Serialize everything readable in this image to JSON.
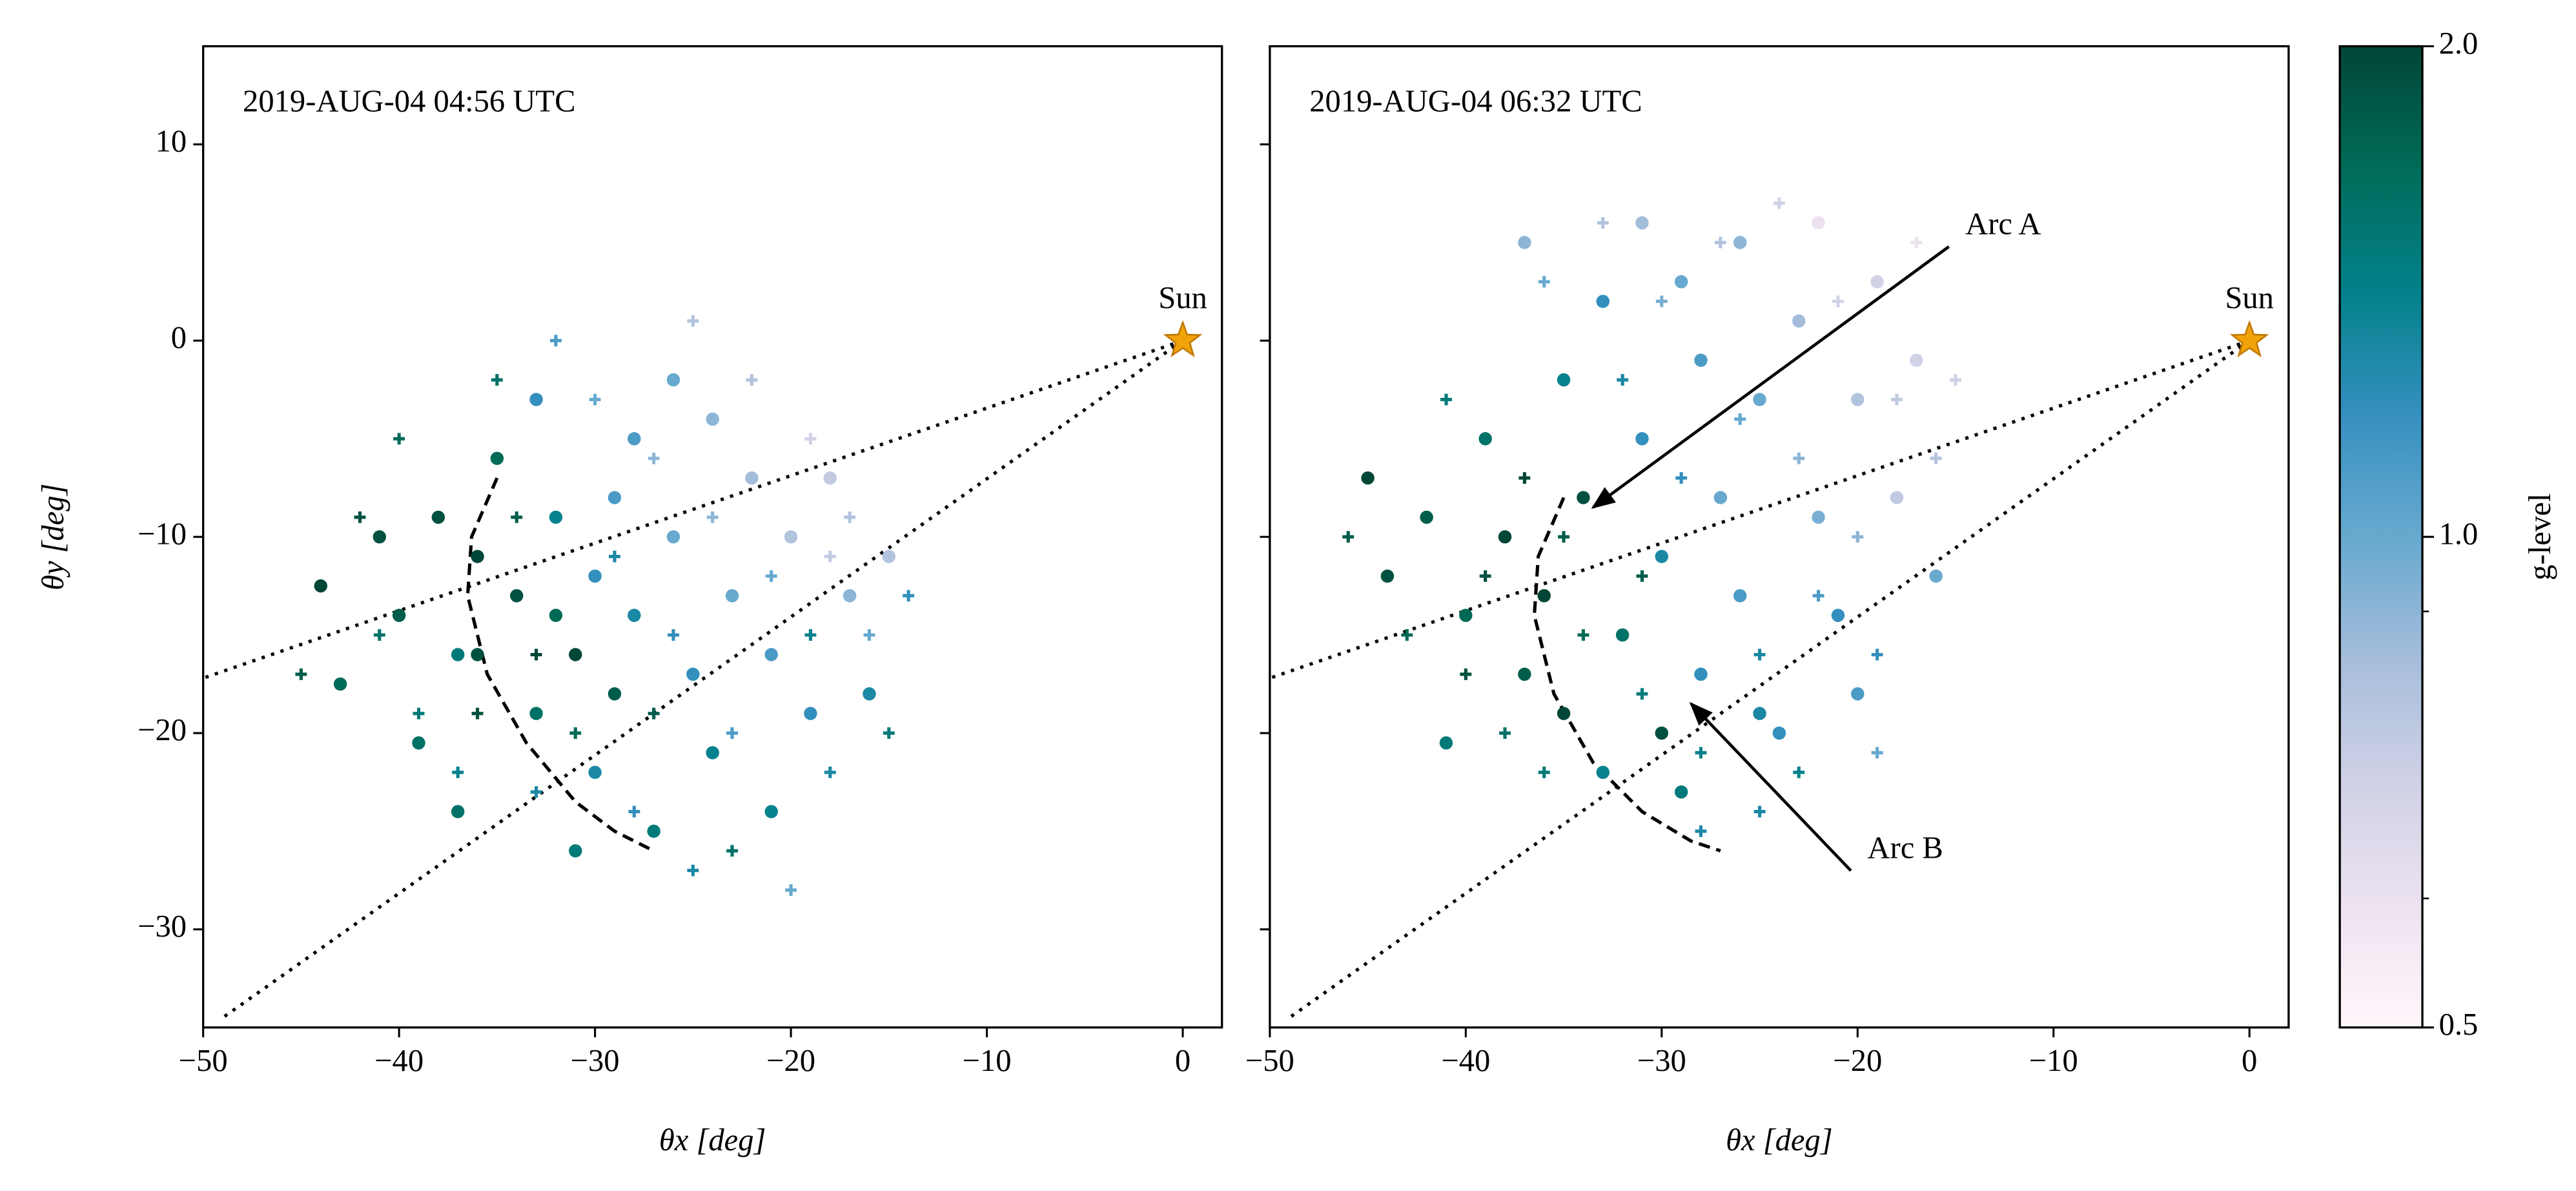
{
  "chart_data": [
    {
      "type": "scatter",
      "title": "2019-AUG-04 04:56 UTC",
      "xlabel": "θx [deg]",
      "ylabel": "θy [deg]",
      "xlim": [
        -50,
        2
      ],
      "ylim": [
        -35,
        15
      ],
      "xticks": [
        {
          "value": -50,
          "label": "−50"
        },
        {
          "value": -40,
          "label": "−40"
        },
        {
          "value": -30,
          "label": "−30"
        },
        {
          "value": -20,
          "label": "−20"
        },
        {
          "value": -10,
          "label": "−10"
        },
        0
      ],
      "yticks": [
        {
          "value": -30,
          "label": "−30"
        },
        {
          "value": -20,
          "label": "−20"
        },
        {
          "value": -10,
          "label": "−10"
        },
        0,
        10
      ],
      "series": [
        {
          "marker": "o",
          "x": [
            -44,
            -43,
            -41,
            -40,
            -39,
            -38,
            -37,
            -36,
            -35,
            -34,
            -33,
            -32,
            -31,
            -30,
            -30,
            -29,
            -28,
            -28,
            -27,
            -26,
            -25,
            -24,
            -24,
            -23,
            -22,
            -21,
            -21,
            -20,
            -19,
            -18,
            -17,
            -16,
            -15,
            -33,
            -31,
            -37,
            -26,
            -36,
            -32,
            -29
          ],
          "y": [
            -12.5,
            -17.5,
            -10,
            -14,
            -20.5,
            -9,
            -16,
            -11,
            -6,
            -13,
            -19,
            -9,
            -16,
            -12,
            -22,
            -18,
            -5,
            -14,
            -25,
            -10,
            -17,
            -4,
            -21,
            -13,
            -7,
            -16,
            -24,
            -10,
            -19,
            -7,
            -13,
            -18,
            -11,
            -3,
            -26,
            -24,
            -2,
            -16,
            -14,
            -8
          ],
          "g": [
            2.0,
            1.7,
            1.9,
            1.8,
            1.6,
            1.9,
            1.5,
            2.0,
            1.7,
            1.9,
            1.6,
            1.4,
            2.0,
            1.2,
            1.3,
            1.8,
            1.1,
            1.3,
            1.5,
            1.0,
            1.2,
            0.9,
            1.4,
            1.0,
            0.85,
            1.1,
            1.4,
            0.8,
            1.2,
            0.75,
            0.9,
            1.3,
            0.8,
            1.2,
            1.5,
            1.6,
            1.0,
            1.9,
            1.7,
            1.1
          ]
        },
        {
          "marker": "+",
          "x": [
            -45,
            -42,
            -40,
            -39,
            -37,
            -35,
            -34,
            -33,
            -32,
            -31,
            -30,
            -29,
            -28,
            -27,
            -26,
            -25,
            -24,
            -23,
            -22,
            -21,
            -20,
            -19,
            -18,
            -17,
            -16,
            -15,
            -19,
            -36,
            -41,
            -33,
            -23,
            -27,
            -25,
            -18,
            -14
          ],
          "y": [
            -17,
            -9,
            -5,
            -19,
            -22,
            -2,
            -9,
            -23,
            0,
            -20,
            -3,
            -11,
            -24,
            -6,
            -15,
            -27,
            -9,
            -20,
            -2,
            -12,
            -28,
            -5,
            -22,
            -9,
            -15,
            -20,
            -15,
            -19,
            -15,
            -16,
            -26,
            -19,
            1,
            -11,
            -13
          ],
          "g": [
            1.8,
            1.9,
            1.7,
            1.5,
            1.4,
            1.6,
            1.8,
            1.3,
            1.1,
            1.7,
            1.0,
            1.3,
            1.2,
            0.9,
            1.2,
            1.3,
            0.9,
            1.1,
            0.8,
            1.0,
            1.0,
            0.7,
            1.3,
            0.8,
            1.0,
            1.5,
            1.4,
            1.9,
            1.6,
            2.0,
            1.6,
            1.8,
            0.8,
            0.75,
            1.2
          ]
        }
      ],
      "lines": [
        {
          "style": "dotted",
          "x": [
            0,
            -50
          ],
          "y": [
            0,
            -17.2
          ]
        },
        {
          "style": "dotted",
          "x": [
            0,
            -49
          ],
          "y": [
            0,
            -34.5
          ]
        },
        {
          "style": "dashed",
          "x": [
            -35,
            -36.3,
            -36.5,
            -35.5,
            -33.5,
            -31,
            -29,
            -27
          ],
          "y": [
            -7,
            -10,
            -13,
            -17,
            -20.5,
            -23.5,
            -25,
            -26
          ]
        }
      ],
      "sun": {
        "label": "Sun",
        "x": 0,
        "y": 0,
        "color": "#f0a30a"
      },
      "annotations": []
    },
    {
      "type": "scatter",
      "title": "2019-AUG-04 06:32 UTC",
      "xlabel": "θx [deg]",
      "xlim": [
        -50,
        2
      ],
      "ylim": [
        -35,
        15
      ],
      "xticks": [
        {
          "value": -50,
          "label": "−50"
        },
        {
          "value": -40,
          "label": "−40"
        },
        {
          "value": -30,
          "label": "−30"
        },
        {
          "value": -20,
          "label": "−20"
        },
        {
          "value": -10,
          "label": "−10"
        },
        0
      ],
      "yticks": [
        -30,
        -20,
        -10,
        0,
        10
      ],
      "series": [
        {
          "marker": "o",
          "x": [
            -45,
            -44,
            -42,
            -41,
            -40,
            -39,
            -38,
            -37,
            -36,
            -35,
            -34,
            -33,
            -32,
            -31,
            -30,
            -30,
            -29,
            -28,
            -28,
            -27,
            -26,
            -26,
            -25,
            -24,
            -23,
            -22,
            -21,
            -20,
            -19,
            -18,
            -17,
            -16,
            -31,
            -33,
            -35,
            -29,
            -25,
            -37,
            -22,
            -20
          ],
          "y": [
            -7,
            -12,
            -9,
            -20.5,
            -14,
            -5,
            -10,
            -17,
            -13,
            -2,
            -8,
            -22,
            -15,
            -5,
            -20,
            -11,
            3,
            -1,
            -17,
            -8,
            5,
            -13,
            -3,
            -20,
            1,
            -9,
            -14,
            -3,
            3,
            -8,
            -1,
            -12,
            6,
            2,
            -19,
            -23,
            -19,
            5,
            6,
            -18
          ],
          "g": [
            2.0,
            1.9,
            1.8,
            1.5,
            1.7,
            1.6,
            2.0,
            1.8,
            2.0,
            1.4,
            1.9,
            1.4,
            1.6,
            1.2,
            1.9,
            1.3,
            1.0,
            1.1,
            1.2,
            1.0,
            0.9,
            1.1,
            1.0,
            1.2,
            0.85,
            0.95,
            1.2,
            0.8,
            0.7,
            0.75,
            0.7,
            1.0,
            0.85,
            1.2,
            2.0,
            1.5,
            1.3,
            0.9,
            0.6,
            1.1
          ]
        },
        {
          "marker": "+",
          "x": [
            -46,
            -43,
            -41,
            -39,
            -38,
            -36,
            -35,
            -34,
            -33,
            -32,
            -31,
            -30,
            -29,
            -28,
            -27,
            -26,
            -25,
            -24,
            -23,
            -22,
            -21,
            -20,
            -19,
            -18,
            -17,
            -16,
            -15,
            -40,
            -37,
            -28,
            -23,
            -31,
            -19,
            -36,
            -25
          ],
          "y": [
            -10,
            -15,
            -3,
            -12,
            -20,
            3,
            -10,
            -15,
            6,
            -2,
            -18,
            2,
            -7,
            -21,
            5,
            -4,
            -16,
            7,
            -6,
            -13,
            2,
            -10,
            -16,
            -3,
            5,
            -6,
            -2,
            -17,
            -7,
            -25,
            -22,
            -12,
            -21,
            -22,
            -24
          ],
          "g": [
            1.8,
            1.7,
            1.5,
            1.9,
            1.6,
            1.0,
            1.8,
            1.7,
            0.8,
            1.3,
            1.5,
            0.95,
            1.2,
            1.4,
            0.8,
            1.0,
            1.3,
            0.7,
            0.9,
            1.1,
            0.7,
            0.9,
            1.2,
            0.75,
            0.6,
            0.8,
            0.7,
            1.9,
            2.0,
            1.3,
            1.4,
            1.8,
            1.0,
            1.5,
            1.3
          ]
        }
      ],
      "lines": [
        {
          "style": "dotted",
          "x": [
            0,
            -50
          ],
          "y": [
            0,
            -17.2
          ]
        },
        {
          "style": "dotted",
          "x": [
            0,
            -49
          ],
          "y": [
            0,
            -34.5
          ]
        },
        {
          "style": "dashed",
          "x": [
            -35,
            -36.3,
            -36.5,
            -35.5,
            -33.5,
            -31,
            -28.5,
            -27
          ],
          "y": [
            -8,
            -11,
            -14,
            -18,
            -21.5,
            -24,
            -25.5,
            -26
          ]
        }
      ],
      "sun": {
        "label": "Sun",
        "x": 0,
        "y": 0,
        "color": "#f0a30a"
      },
      "annotations": [
        {
          "text": "Arc A",
          "x": -14.5,
          "y": 5.8,
          "xy": [
            -33.5,
            -8.5
          ]
        },
        {
          "text": "Arc B",
          "x": -19.5,
          "y": -26,
          "xy": [
            -28.5,
            -18.5
          ]
        }
      ]
    },
    {
      "type": "colorbar",
      "label": "g-level",
      "clim": [
        0.5,
        2.0
      ],
      "log": true,
      "ticks": [
        0.5,
        {
          "value": 1,
          "label": "1.0"
        },
        {
          "value": 2,
          "label": "2.0"
        }
      ],
      "minor_ticks": [
        0.6,
        0.9
      ],
      "colormap": [
        "#fff7fb",
        "#ece2f0",
        "#d0d1e6",
        "#a6bddb",
        "#67a9cf",
        "#3690c0",
        "#02818a",
        "#016c59",
        "#014636"
      ]
    }
  ]
}
